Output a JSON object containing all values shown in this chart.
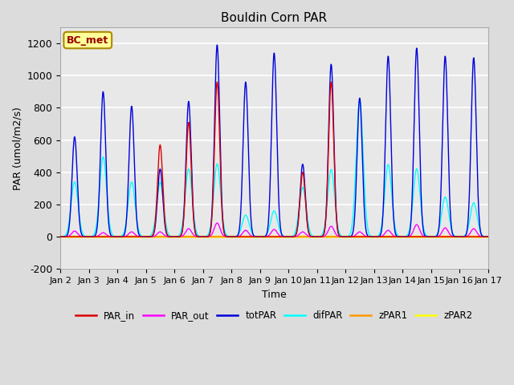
{
  "title": "Bouldin Corn PAR",
  "ylabel": "PAR (umol/m2/s)",
  "xlabel": "Time",
  "ylim": [
    -200,
    1300
  ],
  "yticks": [
    -200,
    0,
    200,
    400,
    600,
    800,
    1000,
    1200
  ],
  "xtick_labels": [
    "Jan 2",
    "Jan 3",
    "Jan 4",
    "Jan 5",
    "Jan 6",
    "Jan 7",
    "Jan 8",
    "Jan 9",
    "Jan 10",
    "Jan 11",
    "Jan 12",
    "Jan 13",
    "Jan 14",
    "Jan 15",
    "Jan 16",
    "Jan 17"
  ],
  "legend_label": "BC_met",
  "colors": {
    "PAR_in": "#dd0000",
    "PAR_out": "#ff00ff",
    "totPAR": "#0000dd",
    "difPAR": "#00ffff",
    "zPAR1": "#ff9900",
    "zPAR2": "#ffff00"
  },
  "bg_color": "#dcdcdc",
  "plot_bg_color": "#e8e8e8",
  "grid_color": "#ffffff",
  "totPAR_peaks": [
    620,
    900,
    810,
    420,
    840,
    1190,
    960,
    1140,
    450,
    1070,
    860,
    1120,
    1170,
    1120,
    1110
  ],
  "difPAR_ratio": [
    0.55,
    0.55,
    0.42,
    0.8,
    0.5,
    0.38,
    0.14,
    0.14,
    0.68,
    0.39,
    0.99,
    0.4,
    0.36,
    0.22,
    0.19
  ],
  "PAR_out_peaks": [
    35,
    25,
    30,
    30,
    50,
    85,
    40,
    45,
    30,
    65,
    30,
    40,
    75,
    55,
    50
  ],
  "PAR_in_peaks": [
    0,
    0,
    0,
    570,
    710,
    960,
    0,
    0,
    400,
    960,
    0,
    0,
    0,
    0,
    0
  ],
  "sigma_tot": 0.09,
  "sigma_dif": 0.12,
  "sigma_out": 0.1
}
